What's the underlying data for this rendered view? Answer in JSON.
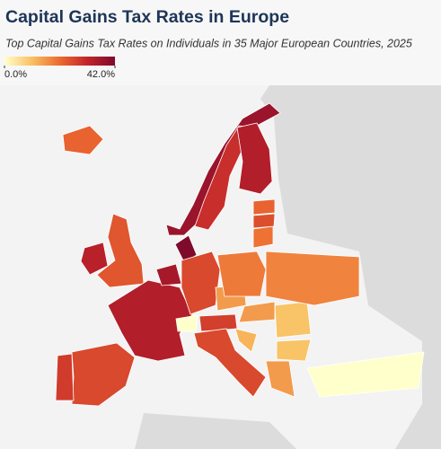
{
  "title": "Capital Gains Tax Rates in Europe",
  "subtitle": "Top Capital Gains Tax Rates on Individuals in 35 Major European Countries, 2025",
  "legend": {
    "ticks": [
      {
        "value": 0,
        "label": "0.0%"
      },
      {
        "value": 42,
        "label": "42.0%"
      }
    ],
    "colors": [
      "#ffffcc",
      "#f9c062",
      "#ec6a2f",
      "#c2242a",
      "#7f0a2c"
    ]
  },
  "regions": [
    37.8,
    30,
    34,
    42,
    24,
    33,
    22,
    34,
    26,
    28,
    36,
    26,
    0,
    27.5,
    15,
    19,
    26,
    15,
    10,
    10,
    15,
    0,
    18,
    20,
    25,
    22,
    12
  ]
}
